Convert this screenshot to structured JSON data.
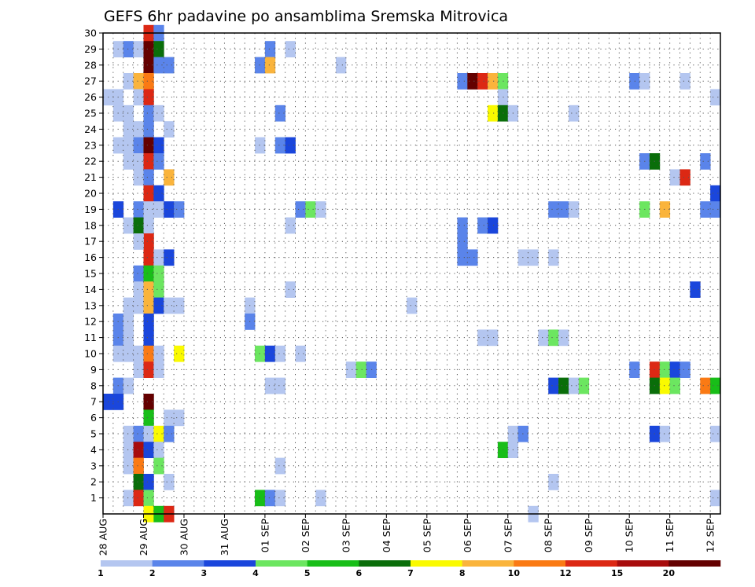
{
  "chart_data": {
    "type": "heatmap",
    "title": "GEFS 6hr padavine po ansamblima Sremska Mitrovica",
    "xlabel": "",
    "ylabel": "",
    "x_ticks": [
      "28 AUG",
      "29 AUG",
      "30 AUG",
      "31 AUG",
      "01 SEP",
      "02 SEP",
      "03 SEP",
      "04 SEP",
      "05 SEP",
      "06 SEP",
      "07 SEP",
      "08 SEP",
      "09 SEP",
      "10 SEP",
      "11 SEP",
      "12 SEP"
    ],
    "y_ticks": [
      1,
      2,
      3,
      4,
      5,
      6,
      7,
      8,
      9,
      10,
      11,
      12,
      13,
      14,
      15,
      16,
      17,
      18,
      19,
      20,
      21,
      22,
      23,
      24,
      25,
      26,
      27,
      28,
      29,
      30
    ],
    "xlim_steps": [
      0,
      61
    ],
    "ylim": [
      0,
      30
    ],
    "steps_per_day": 4,
    "grid": true,
    "colorbar": {
      "levels": [
        1,
        2,
        3,
        4,
        5,
        6,
        7,
        8,
        10,
        12,
        15,
        20
      ],
      "tick_labels": [
        "1",
        "2",
        "3",
        "4",
        "5",
        "6",
        "7",
        "8",
        "10",
        "12",
        "15",
        "20"
      ],
      "colors": [
        "#b4c6f0",
        "#5a84ea",
        "#1a46dc",
        "#6ce660",
        "#18be18",
        "#0a6e0a",
        "#fafa00",
        "#fab43c",
        "#fa7a14",
        "#dc2814",
        "#a80c0c",
        "#640000"
      ]
    },
    "note_cells": "each cell = [time step index from 28 AUG 00z in 6h steps, ensemble member, precipitation mm]",
    "cells": [
      [
        4,
        30,
        12
      ],
      [
        5,
        30,
        2
      ],
      [
        1,
        29,
        1
      ],
      [
        2,
        29,
        2
      ],
      [
        3,
        29,
        1
      ],
      [
        4,
        29,
        20
      ],
      [
        5,
        29,
        6
      ],
      [
        16,
        29,
        2
      ],
      [
        18,
        29,
        1
      ],
      [
        4,
        28,
        20
      ],
      [
        5,
        28,
        2
      ],
      [
        6,
        28,
        2
      ],
      [
        15,
        28,
        2
      ],
      [
        16,
        28,
        8
      ],
      [
        23,
        28,
        1
      ],
      [
        2,
        27,
        1
      ],
      [
        3,
        27,
        8
      ],
      [
        4,
        27,
        10
      ],
      [
        35,
        27,
        2
      ],
      [
        36,
        27,
        20
      ],
      [
        37,
        27,
        12
      ],
      [
        38,
        27,
        8
      ],
      [
        39,
        27,
        4
      ],
      [
        52,
        27,
        2
      ],
      [
        53,
        27,
        1
      ],
      [
        57,
        27,
        1
      ],
      [
        0,
        26,
        1
      ],
      [
        1,
        26,
        1
      ],
      [
        3,
        26,
        1
      ],
      [
        4,
        26,
        12
      ],
      [
        39,
        26,
        1
      ],
      [
        60,
        26,
        1
      ],
      [
        1,
        25,
        1
      ],
      [
        2,
        25,
        1
      ],
      [
        4,
        25,
        2
      ],
      [
        5,
        25,
        1
      ],
      [
        17,
        25,
        2
      ],
      [
        38,
        25,
        7
      ],
      [
        39,
        25,
        6
      ],
      [
        40,
        25,
        1
      ],
      [
        46,
        25,
        1
      ],
      [
        2,
        24,
        1
      ],
      [
        3,
        24,
        1
      ],
      [
        4,
        24,
        2
      ],
      [
        6,
        24,
        1
      ],
      [
        1,
        23,
        1
      ],
      [
        2,
        23,
        1
      ],
      [
        3,
        23,
        2
      ],
      [
        4,
        23,
        20
      ],
      [
        5,
        23,
        3
      ],
      [
        15,
        23,
        1
      ],
      [
        17,
        23,
        2
      ],
      [
        18,
        23,
        3
      ],
      [
        2,
        22,
        1
      ],
      [
        3,
        22,
        1
      ],
      [
        4,
        22,
        12
      ],
      [
        5,
        22,
        2
      ],
      [
        53,
        22,
        2
      ],
      [
        54,
        22,
        6
      ],
      [
        59,
        22,
        2
      ],
      [
        3,
        21,
        1
      ],
      [
        4,
        21,
        2
      ],
      [
        6,
        21,
        8
      ],
      [
        56,
        21,
        1
      ],
      [
        57,
        21,
        12
      ],
      [
        4,
        20,
        12
      ],
      [
        5,
        20,
        3
      ],
      [
        60,
        20,
        3
      ],
      [
        1,
        19,
        3
      ],
      [
        3,
        19,
        2
      ],
      [
        4,
        19,
        1
      ],
      [
        5,
        19,
        1
      ],
      [
        6,
        19,
        3
      ],
      [
        7,
        19,
        2
      ],
      [
        19,
        19,
        2
      ],
      [
        20,
        19,
        4
      ],
      [
        21,
        19,
        1
      ],
      [
        44,
        19,
        2
      ],
      [
        45,
        19,
        2
      ],
      [
        46,
        19,
        1
      ],
      [
        53,
        19,
        4
      ],
      [
        55,
        19,
        8
      ],
      [
        59,
        19,
        2
      ],
      [
        60,
        19,
        2
      ],
      [
        2,
        18,
        1
      ],
      [
        3,
        18,
        6
      ],
      [
        4,
        18,
        1
      ],
      [
        18,
        18,
        1
      ],
      [
        35,
        18,
        2
      ],
      [
        37,
        18,
        2
      ],
      [
        38,
        18,
        3
      ],
      [
        4,
        17,
        12
      ],
      [
        3,
        17,
        1
      ],
      [
        35,
        17,
        2
      ],
      [
        4,
        16,
        12
      ],
      [
        5,
        16,
        1
      ],
      [
        6,
        16,
        3
      ],
      [
        35,
        16,
        2
      ],
      [
        36,
        16,
        2
      ],
      [
        41,
        16,
        1
      ],
      [
        42,
        16,
        1
      ],
      [
        44,
        16,
        1
      ],
      [
        3,
        15,
        2
      ],
      [
        4,
        15,
        5
      ],
      [
        5,
        15,
        4
      ],
      [
        3,
        14,
        1
      ],
      [
        4,
        14,
        8
      ],
      [
        5,
        14,
        4
      ],
      [
        18,
        14,
        1
      ],
      [
        58,
        14,
        3
      ],
      [
        2,
        13,
        1
      ],
      [
        3,
        13,
        1
      ],
      [
        4,
        13,
        8
      ],
      [
        5,
        13,
        3
      ],
      [
        6,
        13,
        1
      ],
      [
        7,
        13,
        1
      ],
      [
        14,
        13,
        1
      ],
      [
        30,
        13,
        1
      ],
      [
        1,
        12,
        2
      ],
      [
        2,
        12,
        1
      ],
      [
        4,
        12,
        3
      ],
      [
        14,
        12,
        2
      ],
      [
        1,
        11,
        2
      ],
      [
        2,
        11,
        1
      ],
      [
        4,
        11,
        3
      ],
      [
        37,
        11,
        1
      ],
      [
        38,
        11,
        1
      ],
      [
        43,
        11,
        1
      ],
      [
        44,
        11,
        4
      ],
      [
        45,
        11,
        1
      ],
      [
        1,
        10,
        1
      ],
      [
        2,
        10,
        1
      ],
      [
        3,
        10,
        1
      ],
      [
        4,
        10,
        10
      ],
      [
        5,
        10,
        1
      ],
      [
        7,
        10,
        7
      ],
      [
        15,
        10,
        4
      ],
      [
        16,
        10,
        3
      ],
      [
        17,
        10,
        1
      ],
      [
        19,
        10,
        1
      ],
      [
        3,
        9,
        1
      ],
      [
        4,
        9,
        12
      ],
      [
        5,
        9,
        1
      ],
      [
        24,
        9,
        1
      ],
      [
        25,
        9,
        4
      ],
      [
        26,
        9,
        2
      ],
      [
        52,
        9,
        2
      ],
      [
        54,
        9,
        12
      ],
      [
        55,
        9,
        4
      ],
      [
        56,
        9,
        3
      ],
      [
        57,
        9,
        2
      ],
      [
        1,
        8,
        2
      ],
      [
        2,
        8,
        1
      ],
      [
        16,
        8,
        1
      ],
      [
        17,
        8,
        1
      ],
      [
        44,
        8,
        3
      ],
      [
        45,
        8,
        6
      ],
      [
        46,
        8,
        1
      ],
      [
        47,
        8,
        4
      ],
      [
        54,
        8,
        6
      ],
      [
        55,
        8,
        7
      ],
      [
        56,
        8,
        4
      ],
      [
        59,
        8,
        10
      ],
      [
        60,
        8,
        5
      ],
      [
        0,
        7,
        3
      ],
      [
        1,
        7,
        3
      ],
      [
        4,
        7,
        20
      ],
      [
        4,
        6,
        5
      ],
      [
        6,
        6,
        1
      ],
      [
        7,
        6,
        1
      ],
      [
        2,
        5,
        1
      ],
      [
        3,
        5,
        2
      ],
      [
        4,
        5,
        1
      ],
      [
        5,
        5,
        7
      ],
      [
        6,
        5,
        2
      ],
      [
        40,
        5,
        1
      ],
      [
        41,
        5,
        2
      ],
      [
        54,
        5,
        3
      ],
      [
        55,
        5,
        1
      ],
      [
        60,
        5,
        1
      ],
      [
        2,
        4,
        1
      ],
      [
        3,
        4,
        15
      ],
      [
        4,
        4,
        3
      ],
      [
        5,
        4,
        1
      ],
      [
        39,
        4,
        5
      ],
      [
        40,
        4,
        1
      ],
      [
        2,
        3,
        1
      ],
      [
        3,
        3,
        10
      ],
      [
        5,
        3,
        4
      ],
      [
        17,
        3,
        1
      ],
      [
        3,
        2,
        6
      ],
      [
        4,
        2,
        3
      ],
      [
        6,
        2,
        1
      ],
      [
        44,
        2,
        1
      ],
      [
        2,
        1,
        1
      ],
      [
        3,
        1,
        12
      ],
      [
        4,
        1,
        4
      ],
      [
        15,
        1,
        5
      ],
      [
        16,
        1,
        2
      ],
      [
        17,
        1,
        1
      ],
      [
        21,
        1,
        1
      ],
      [
        60,
        1,
        1
      ],
      [
        4,
        0,
        7
      ],
      [
        5,
        0,
        5
      ],
      [
        6,
        0,
        13
      ],
      [
        42,
        0,
        1
      ]
    ]
  }
}
